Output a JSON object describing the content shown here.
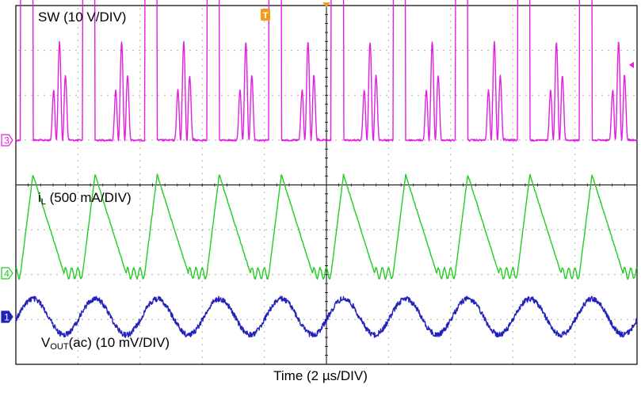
{
  "chart_data": {
    "type": "line",
    "title": "",
    "xlabel": "Time (2 µs/DIV)",
    "ylabel": "",
    "divisions": {
      "horizontal": 10,
      "vertical": 8
    },
    "x_unit": "µs",
    "xlim": [
      0,
      20
    ],
    "switching_period_us": 2.0,
    "trigger_marker": "T",
    "series": [
      {
        "name": "SW",
        "channel": "3",
        "label": "SW (10 V/DIV)",
        "scale": "10 V/DIV",
        "unit": "V",
        "color": "#e020e0",
        "waveform": "switch node pulses with ringing",
        "low_level": 0,
        "high_level": 40,
        "ringing_peak": 22,
        "pulse_width_us": 0.4,
        "period_us": 2.0
      },
      {
        "name": "iL",
        "channel": "4",
        "label_main": "i",
        "label_sub": "L",
        "label_rest": " (500 mA/DIV)",
        "scale": "500 mA/DIV",
        "unit": "mA",
        "color": "#22cc22",
        "waveform": "triangular inductor current with valley ringing",
        "valley": 0,
        "peak": 1100,
        "rise_time_us": 0.4,
        "fall_time_us": 1.0,
        "period_us": 2.0
      },
      {
        "name": "VOUT(ac)",
        "channel": "1",
        "label_main": "V",
        "label_sub": "OUT",
        "label_rest": "(ac) (10 mV/DIV)",
        "scale": "10 mV/DIV",
        "unit": "mV",
        "color": "#2222bb",
        "waveform": "output voltage ripple with noise",
        "amplitude_pp": 8,
        "period_us": 2.0
      }
    ]
  }
}
